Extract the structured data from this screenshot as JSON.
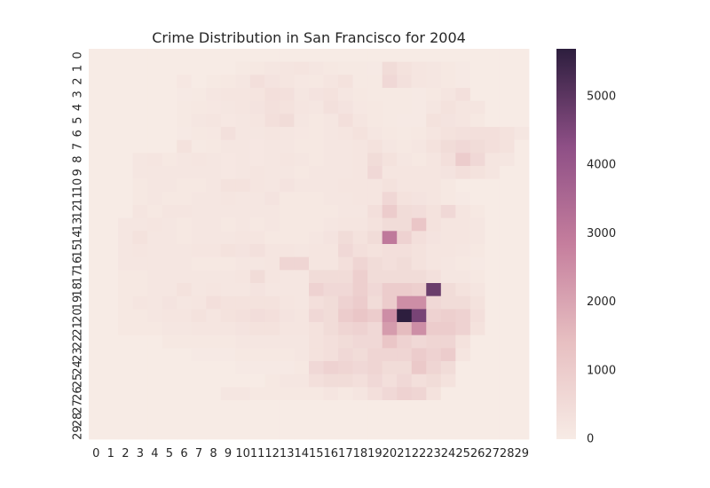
{
  "chart_data": {
    "type": "heatmap",
    "title": "Crime Distribution in San Francisco for 2004",
    "xlabel": "",
    "ylabel": "",
    "x_ticks": [
      "0",
      "1",
      "2",
      "3",
      "4",
      "5",
      "6",
      "7",
      "8",
      "9",
      "10",
      "11",
      "12",
      "13",
      "14",
      "15",
      "16",
      "17",
      "18",
      "19",
      "20",
      "21",
      "22",
      "23",
      "24",
      "25",
      "26",
      "27",
      "28",
      "29"
    ],
    "y_ticks": [
      "0",
      "1",
      "2",
      "3",
      "4",
      "5",
      "6",
      "7",
      "8",
      "9",
      "10",
      "11",
      "12",
      "13",
      "14",
      "15",
      "16",
      "17",
      "18",
      "19",
      "20",
      "21",
      "22",
      "23",
      "24",
      "25",
      "26",
      "27",
      "28",
      "29"
    ],
    "y_tick_order": "top-to-bottom",
    "colorbar": {
      "ticks": [
        0,
        1000,
        2000,
        3000,
        4000,
        5000
      ],
      "range": [
        0,
        5700
      ],
      "colors": [
        "#f7ebe5",
        "#e7bfc1",
        "#c57e9d",
        "#8e4f86",
        "#2d1e3e"
      ]
    },
    "grid": false,
    "values": [
      [
        0,
        0,
        0,
        0,
        0,
        0,
        0,
        0,
        0,
        0,
        0,
        0,
        0,
        0,
        0,
        0,
        0,
        0,
        0,
        0,
        0,
        0,
        0,
        0,
        0,
        0,
        0,
        0,
        0,
        0
      ],
      [
        0,
        0,
        0,
        0,
        0,
        0,
        0,
        0,
        0,
        0,
        80,
        100,
        150,
        180,
        220,
        150,
        100,
        80,
        60,
        50,
        500,
        300,
        200,
        150,
        100,
        50,
        0,
        0,
        0,
        0
      ],
      [
        0,
        0,
        0,
        0,
        0,
        0,
        120,
        0,
        80,
        100,
        150,
        400,
        250,
        200,
        120,
        100,
        200,
        300,
        80,
        60,
        600,
        350,
        200,
        150,
        100,
        50,
        0,
        0,
        0,
        0
      ],
      [
        0,
        0,
        0,
        0,
        0,
        0,
        50,
        80,
        150,
        200,
        180,
        220,
        400,
        350,
        150,
        250,
        300,
        150,
        100,
        80,
        80,
        60,
        50,
        100,
        200,
        350,
        0,
        0,
        0,
        0
      ],
      [
        0,
        0,
        0,
        0,
        0,
        0,
        80,
        100,
        120,
        150,
        180,
        250,
        350,
        300,
        200,
        150,
        350,
        250,
        120,
        100,
        80,
        60,
        50,
        150,
        300,
        200,
        200,
        0,
        0,
        0
      ],
      [
        0,
        0,
        0,
        0,
        0,
        0,
        80,
        150,
        200,
        120,
        150,
        200,
        400,
        500,
        150,
        100,
        150,
        400,
        200,
        100,
        60,
        50,
        50,
        300,
        250,
        200,
        100,
        0,
        0,
        0
      ],
      [
        0,
        0,
        0,
        0,
        0,
        0,
        50,
        100,
        120,
        350,
        150,
        150,
        200,
        150,
        120,
        100,
        150,
        200,
        300,
        150,
        100,
        80,
        100,
        200,
        300,
        350,
        400,
        400,
        300,
        150
      ],
      [
        0,
        0,
        0,
        0,
        0,
        0,
        300,
        80,
        100,
        150,
        150,
        120,
        150,
        150,
        100,
        100,
        150,
        150,
        200,
        300,
        150,
        100,
        150,
        300,
        500,
        600,
        500,
        400,
        300,
        0
      ],
      [
        0,
        0,
        0,
        150,
        200,
        100,
        150,
        200,
        150,
        120,
        150,
        120,
        150,
        200,
        150,
        100,
        150,
        150,
        200,
        500,
        300,
        150,
        100,
        200,
        400,
        1000,
        600,
        200,
        150,
        0
      ],
      [
        0,
        0,
        0,
        150,
        150,
        150,
        150,
        150,
        150,
        120,
        150,
        200,
        150,
        150,
        100,
        150,
        150,
        150,
        200,
        600,
        200,
        200,
        200,
        200,
        250,
        400,
        300,
        200,
        0,
        0
      ],
      [
        0,
        0,
        0,
        100,
        150,
        150,
        100,
        100,
        150,
        300,
        300,
        200,
        150,
        250,
        150,
        150,
        150,
        200,
        200,
        200,
        300,
        200,
        200,
        200,
        100,
        0,
        0,
        0,
        0,
        0
      ],
      [
        0,
        0,
        0,
        100,
        150,
        100,
        100,
        150,
        150,
        200,
        150,
        150,
        250,
        100,
        100,
        100,
        150,
        150,
        200,
        200,
        650,
        300,
        250,
        200,
        100,
        50,
        0,
        0,
        0,
        0
      ],
      [
        0,
        0,
        0,
        200,
        100,
        200,
        200,
        150,
        150,
        150,
        150,
        150,
        150,
        100,
        100,
        100,
        100,
        150,
        150,
        400,
        1000,
        500,
        450,
        300,
        600,
        200,
        100,
        0,
        0,
        0
      ],
      [
        0,
        0,
        150,
        150,
        200,
        150,
        100,
        150,
        150,
        100,
        150,
        100,
        150,
        100,
        100,
        100,
        150,
        200,
        200,
        300,
        500,
        500,
        1200,
        300,
        200,
        200,
        150,
        0,
        0,
        0
      ],
      [
        0,
        0,
        150,
        300,
        150,
        150,
        100,
        150,
        150,
        150,
        200,
        200,
        100,
        100,
        100,
        150,
        250,
        500,
        300,
        500,
        3000,
        800,
        400,
        250,
        200,
        200,
        150,
        0,
        0,
        0
      ],
      [
        0,
        0,
        150,
        200,
        150,
        150,
        150,
        200,
        200,
        300,
        250,
        350,
        200,
        200,
        150,
        200,
        200,
        600,
        400,
        300,
        400,
        400,
        300,
        200,
        200,
        150,
        100,
        0,
        0,
        0
      ],
      [
        0,
        0,
        150,
        150,
        150,
        150,
        150,
        100,
        100,
        100,
        150,
        150,
        200,
        700,
        700,
        200,
        200,
        400,
        700,
        500,
        400,
        500,
        300,
        200,
        150,
        100,
        50,
        0,
        0,
        0
      ],
      [
        0,
        0,
        100,
        100,
        150,
        150,
        150,
        150,
        150,
        150,
        200,
        500,
        200,
        150,
        150,
        500,
        500,
        500,
        900,
        500,
        500,
        500,
        500,
        350,
        150,
        150,
        100,
        0,
        0,
        0
      ],
      [
        0,
        0,
        100,
        100,
        150,
        150,
        300,
        150,
        200,
        150,
        150,
        250,
        150,
        150,
        150,
        800,
        600,
        600,
        900,
        600,
        1000,
        1000,
        900,
        4800,
        500,
        300,
        200,
        0,
        0,
        0
      ],
      [
        0,
        0,
        100,
        200,
        150,
        250,
        150,
        200,
        400,
        300,
        300,
        300,
        300,
        200,
        150,
        400,
        500,
        800,
        1000,
        500,
        1000,
        2500,
        2500,
        600,
        500,
        500,
        300,
        0,
        0,
        0
      ],
      [
        0,
        0,
        100,
        100,
        150,
        200,
        200,
        300,
        200,
        300,
        350,
        450,
        400,
        250,
        200,
        600,
        500,
        1000,
        1200,
        1000,
        2500,
        5700,
        4600,
        800,
        900,
        800,
        400,
        0,
        0,
        0
      ],
      [
        0,
        0,
        100,
        100,
        100,
        150,
        150,
        200,
        200,
        200,
        250,
        300,
        300,
        200,
        200,
        300,
        500,
        700,
        800,
        600,
        2200,
        1500,
        2500,
        1000,
        1000,
        800,
        300,
        0,
        0,
        0
      ],
      [
        0,
        0,
        0,
        0,
        0,
        100,
        100,
        100,
        100,
        100,
        150,
        150,
        150,
        150,
        150,
        300,
        400,
        500,
        600,
        600,
        1200,
        800,
        600,
        700,
        700,
        300,
        0,
        0,
        0,
        0
      ],
      [
        0,
        0,
        0,
        0,
        0,
        0,
        0,
        50,
        50,
        50,
        100,
        100,
        100,
        100,
        150,
        300,
        400,
        600,
        500,
        700,
        700,
        700,
        1000,
        800,
        1000,
        200,
        0,
        0,
        0,
        0
      ],
      [
        0,
        0,
        0,
        0,
        0,
        0,
        0,
        0,
        0,
        0,
        50,
        50,
        50,
        50,
        100,
        600,
        800,
        700,
        600,
        700,
        500,
        500,
        1100,
        700,
        500,
        0,
        0,
        0,
        0,
        0
      ],
      [
        0,
        0,
        0,
        0,
        0,
        0,
        0,
        0,
        0,
        0,
        0,
        0,
        100,
        150,
        150,
        400,
        500,
        500,
        400,
        600,
        400,
        600,
        400,
        500,
        300,
        0,
        0,
        0,
        0,
        0
      ],
      [
        0,
        0,
        0,
        0,
        0,
        0,
        0,
        0,
        0,
        150,
        150,
        100,
        100,
        100,
        100,
        100,
        200,
        100,
        200,
        400,
        600,
        800,
        700,
        300,
        0,
        0,
        0,
        0,
        0,
        0
      ],
      [
        0,
        0,
        0,
        0,
        0,
        0,
        0,
        0,
        0,
        0,
        0,
        0,
        0,
        0,
        0,
        0,
        0,
        0,
        0,
        0,
        0,
        0,
        0,
        0,
        0,
        0,
        0,
        0,
        0,
        0
      ],
      [
        0,
        0,
        0,
        0,
        0,
        0,
        0,
        0,
        0,
        0,
        0,
        0,
        0,
        0,
        0,
        0,
        0,
        0,
        0,
        0,
        0,
        0,
        0,
        0,
        0,
        0,
        0,
        0,
        0,
        0
      ],
      [
        0,
        0,
        0,
        0,
        0,
        0,
        0,
        0,
        0,
        0,
        0,
        0,
        0,
        0,
        0,
        0,
        0,
        0,
        0,
        0,
        0,
        0,
        0,
        0,
        0,
        0,
        0,
        0,
        0,
        0
      ]
    ]
  }
}
